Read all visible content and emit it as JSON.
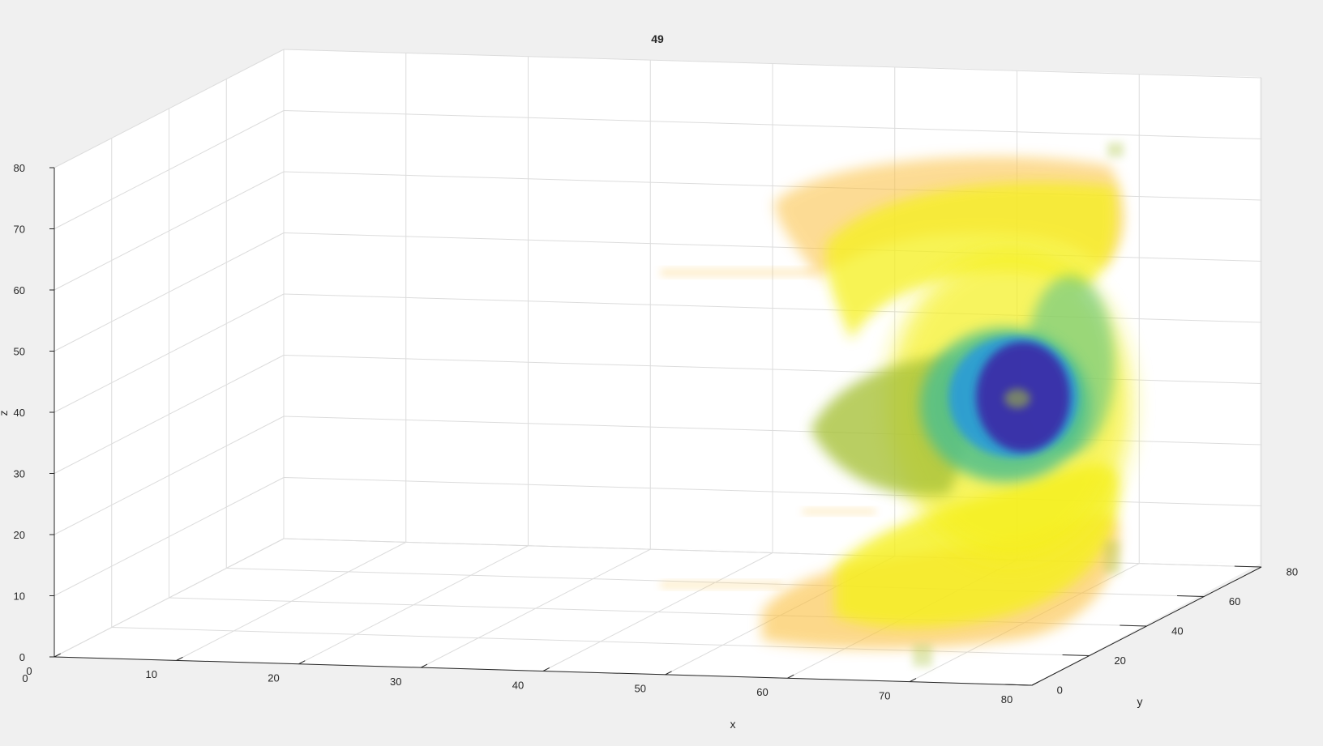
{
  "chart_data": {
    "type": "volume",
    "title": "49",
    "xlabel": "x",
    "ylabel": "y",
    "zlabel": "z",
    "xlim": [
      0,
      80
    ],
    "ylim": [
      0,
      80
    ],
    "zlim": [
      0,
      80
    ],
    "xticks": [
      "0",
      "10",
      "20",
      "30",
      "40",
      "50",
      "60",
      "70",
      "80"
    ],
    "yticks": [
      "0",
      "20",
      "40",
      "60",
      "80"
    ],
    "zticks": [
      "0",
      "10",
      "20",
      "30",
      "40",
      "50",
      "60",
      "70",
      "80"
    ],
    "grid": true,
    "colormap": "parula",
    "colors": {
      "background": "#f0f0f0",
      "axes_face": "#ffffff",
      "grid": "#dcdcdc",
      "axis": "#262626",
      "core": "#3b2fa8",
      "inner": "#2a9bd8",
      "middle": "#4fc08d",
      "outer_green": "#a8c23a",
      "shell": "#f5f01a",
      "halo": "#fbbf3c"
    }
  }
}
